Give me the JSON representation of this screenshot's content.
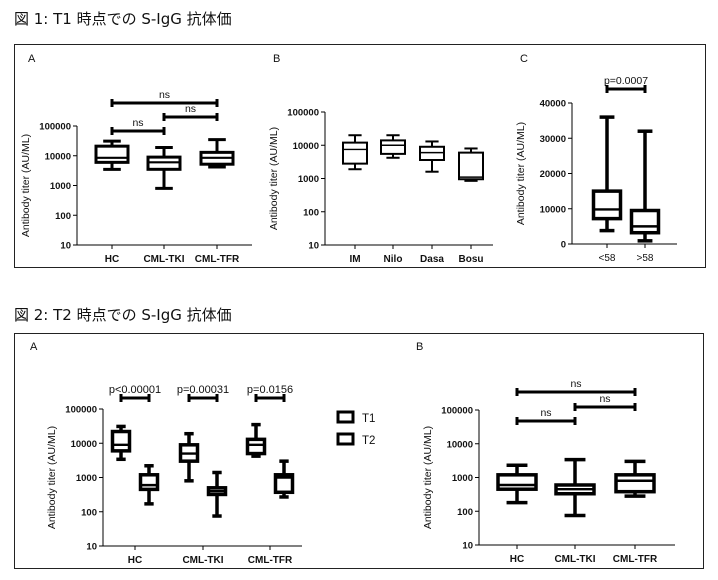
{
  "figure1": {
    "title": "図 1: T1 時点での S-IgG 抗体価"
  },
  "figure2": {
    "title": "図 2: T2 時点での S-IgG 抗体価"
  },
  "chart_data": [
    {
      "id": "fig1A",
      "panel": "A",
      "type": "box",
      "ylabel": "Antibody titer (AU/ML)",
      "yscale": "log",
      "ylim": [
        10,
        100000
      ],
      "yticks": [
        "10",
        "100",
        "1000",
        "10000",
        "100000"
      ],
      "categories": [
        "HC",
        "CML-TKI",
        "CML-TFR"
      ],
      "boxes": [
        [
          3500,
          6000,
          8500,
          21000,
          31000
        ],
        [
          800,
          3500,
          6000,
          9000,
          19000
        ],
        [
          4200,
          5200,
          8500,
          13000,
          35000
        ]
      ],
      "comparisons": [
        {
          "from": 0,
          "to": 2,
          "label": "ns"
        },
        {
          "from": 1,
          "to": 2,
          "label": "ns"
        },
        {
          "from": 0,
          "to": 1,
          "label": "ns"
        }
      ]
    },
    {
      "id": "fig1B",
      "panel": "B",
      "type": "box",
      "ylabel": "Antibody titer (AU/ML)",
      "yscale": "log",
      "ylim": [
        10,
        100000
      ],
      "yticks": [
        "10",
        "100",
        "1000",
        "10000",
        "100000"
      ],
      "categories": [
        "IM",
        "Nilo",
        "Dasa",
        "Bosu"
      ],
      "boxes": [
        [
          1900,
          2800,
          7500,
          12000,
          20000
        ],
        [
          4200,
          5500,
          10000,
          14000,
          20000
        ],
        [
          1600,
          3600,
          6000,
          9000,
          13000
        ],
        [
          850,
          950,
          1100,
          6000,
          8000
        ]
      ],
      "comparisons": []
    },
    {
      "id": "fig1C",
      "panel": "C",
      "type": "box",
      "ylabel": "Antibody titer (AU/ML)",
      "yscale": "linear",
      "ylim": [
        0,
        40000
      ],
      "yticks": [
        "0",
        "10000",
        "20000",
        "30000",
        "40000"
      ],
      "categories": [
        "<58",
        ">58"
      ],
      "boxes": [
        [
          3800,
          7200,
          9800,
          15000,
          36000
        ],
        [
          900,
          3200,
          5000,
          9500,
          32000
        ]
      ],
      "comparisons": [
        {
          "from": 0,
          "to": 1,
          "label": "p=0.0007"
        }
      ]
    },
    {
      "id": "fig2A",
      "panel": "A",
      "type": "box",
      "ylabel": "Antibody titer (AU/ML)",
      "yscale": "log",
      "ylim": [
        10,
        100000
      ],
      "yticks": [
        "10",
        "100",
        "1000",
        "10000",
        "100000"
      ],
      "categories": [
        "HC",
        "CML-TKI",
        "CML-TFR"
      ],
      "series": [
        {
          "name": "T1",
          "boxes": [
            [
              3400,
              6000,
              9000,
              22000,
              31000
            ],
            [
              800,
              3000,
              5000,
              9000,
              19000
            ],
            [
              4200,
              5000,
              9000,
              13000,
              35000
            ]
          ]
        },
        {
          "name": "T2",
          "boxes": [
            [
              170,
              450,
              600,
              1200,
              2200
            ],
            [
              75,
              320,
              400,
              500,
              1400
            ],
            [
              270,
              370,
              1000,
              1200,
              3000
            ]
          ]
        }
      ],
      "pairs": [
        "p<0.00001",
        "p=0.00031",
        "p=0.0156"
      ],
      "legend": "right"
    },
    {
      "id": "fig2B",
      "panel": "B",
      "type": "box",
      "ylabel": "Antibody titer (AU/ML)",
      "yscale": "log",
      "ylim": [
        10,
        100000
      ],
      "yticks": [
        "10",
        "100",
        "1000",
        "10000",
        "100000"
      ],
      "categories": [
        "HC",
        "CML-TKI",
        "CML-TFR"
      ],
      "boxes": [
        [
          180,
          450,
          600,
          1200,
          2300
        ],
        [
          75,
          330,
          450,
          600,
          3400
        ],
        [
          280,
          380,
          800,
          1200,
          3000
        ]
      ],
      "comparisons": [
        {
          "from": 0,
          "to": 2,
          "label": "ns"
        },
        {
          "from": 1,
          "to": 2,
          "label": "ns"
        },
        {
          "from": 0,
          "to": 1,
          "label": "ns"
        }
      ]
    }
  ]
}
